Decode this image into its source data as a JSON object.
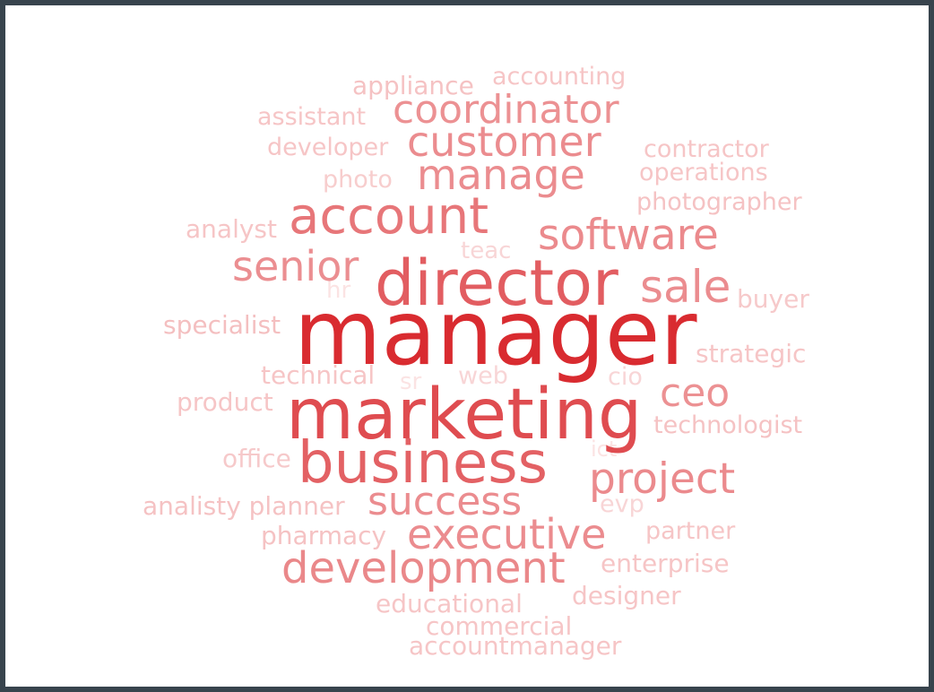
{
  "chart_data": {
    "type": "wordcloud",
    "title": "",
    "color_scale": {
      "min_color": "#fbe3e3",
      "max_color": "#d92b30"
    },
    "words": [
      {
        "text": "manager",
        "weight": 100
      },
      {
        "text": "marketing",
        "weight": 80
      },
      {
        "text": "director",
        "weight": 70
      },
      {
        "text": "business",
        "weight": 68
      },
      {
        "text": "account",
        "weight": 57
      },
      {
        "text": "development",
        "weight": 48
      },
      {
        "text": "project",
        "weight": 47
      },
      {
        "text": "software",
        "weight": 47
      },
      {
        "text": "success",
        "weight": 46
      },
      {
        "text": "executive",
        "weight": 46
      },
      {
        "text": "manage",
        "weight": 46
      },
      {
        "text": "customer",
        "weight": 46
      },
      {
        "text": "coordinator",
        "weight": 44
      },
      {
        "text": "senior",
        "weight": 45
      },
      {
        "text": "sale",
        "weight": 46
      },
      {
        "text": "ceo",
        "weight": 44
      },
      {
        "text": "technologist",
        "weight": 25
      },
      {
        "text": "strategic",
        "weight": 24
      },
      {
        "text": "buyer",
        "weight": 23
      },
      {
        "text": "photographer",
        "weight": 25
      },
      {
        "text": "operations",
        "weight": 24
      },
      {
        "text": "contractor",
        "weight": 24
      },
      {
        "text": "accounting",
        "weight": 24
      },
      {
        "text": "appliance",
        "weight": 25
      },
      {
        "text": "assistant",
        "weight": 24
      },
      {
        "text": "developer",
        "weight": 24
      },
      {
        "text": "photo",
        "weight": 22
      },
      {
        "text": "analyst",
        "weight": 24
      },
      {
        "text": "specialist",
        "weight": 26
      },
      {
        "text": "technical",
        "weight": 24
      },
      {
        "text": "product",
        "weight": 24
      },
      {
        "text": "office",
        "weight": 23
      },
      {
        "text": "analisty planner",
        "weight": 25
      },
      {
        "text": "pharmacy",
        "weight": 25
      },
      {
        "text": "partner",
        "weight": 24
      },
      {
        "text": "enterprise",
        "weight": 24
      },
      {
        "text": "designer",
        "weight": 24
      },
      {
        "text": "educational",
        "weight": 24
      },
      {
        "text": "commercial",
        "weight": 24
      },
      {
        "text": "accountmanager",
        "weight": 24
      },
      {
        "text": "teac",
        "weight": 20
      },
      {
        "text": "hr",
        "weight": 18
      },
      {
        "text": "sr",
        "weight": 18
      },
      {
        "text": "web",
        "weight": 20
      },
      {
        "text": "cio",
        "weight": 20
      },
      {
        "text": "ict",
        "weight": 18
      },
      {
        "text": "evp",
        "weight": 20
      }
    ]
  }
}
